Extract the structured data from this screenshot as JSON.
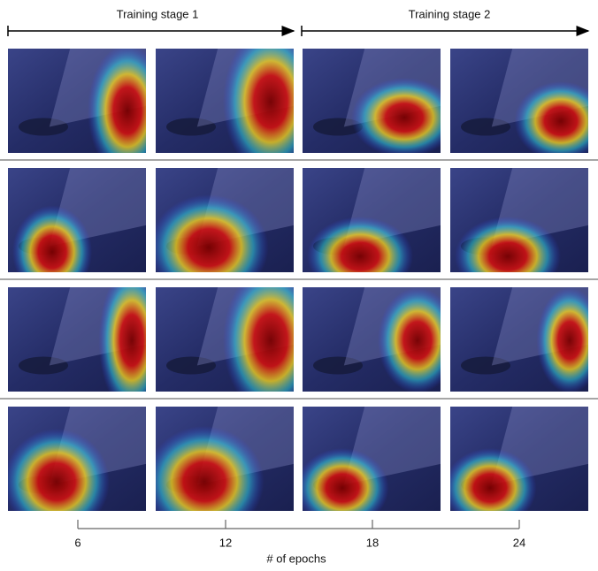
{
  "stages": [
    "Training stage 1",
    "Training stage 2"
  ],
  "axis": {
    "label": "# of epochs",
    "ticks": [
      6,
      12,
      18,
      24
    ]
  }
}
